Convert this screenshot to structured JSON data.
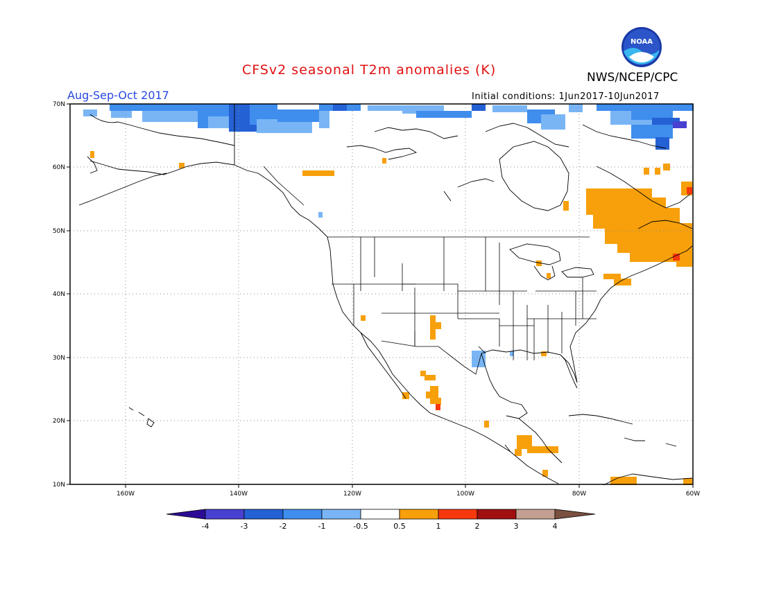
{
  "header": {
    "title": "CFSv2 seasonal T2m anomalies (K)",
    "agency": "NWS/NCEP/CPC",
    "period": "Aug-Sep-Oct 2017",
    "initial_conditions": "Initial conditions: 1Jun2017-10Jun2017",
    "logo_text": "NOAA"
  },
  "map": {
    "lat_labels": [
      "70N",
      "60N",
      "50N",
      "40N",
      "30N",
      "20N",
      "10N"
    ],
    "lon_labels": [
      "160W",
      "140W",
      "120W",
      "100W",
      "80W",
      "60W"
    ]
  },
  "colorbar": {
    "labels": [
      "-4",
      "-3",
      "-2",
      "-1",
      "-0.5",
      "0.5",
      "1",
      "2",
      "3",
      "4"
    ],
    "colors": [
      "#2c0c96",
      "#4840d0",
      "#2461d4",
      "#3f8ded",
      "#79b5f5",
      "#ffffff",
      "#f7a00b",
      "#f7380d",
      "#a01010",
      "#c4a092",
      "#7a5040"
    ]
  },
  "colors": {
    "warm": "#f7a00b",
    "warm2": "#f7380d",
    "cool1": "#79b5f5",
    "cool2": "#3f8ded",
    "cool3": "#2461d4",
    "cool4": "#4840d0",
    "title": "#e01010",
    "period": "#2747e0"
  }
}
